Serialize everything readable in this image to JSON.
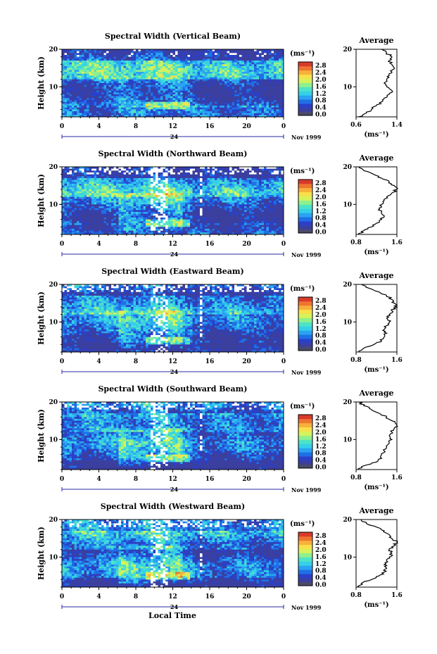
{
  "figure": {
    "xlabel": "Local Time",
    "ylabel": "Height (km)",
    "x_ticks": [
      "0",
      "4",
      "8",
      "12",
      "16",
      "20",
      "0"
    ],
    "y_ticks": [
      "20",
      "10"
    ],
    "date_day": "24",
    "date_label": "Nov 1999",
    "colorbar_unit": "(ms⁻¹)",
    "colorbar_ticks": [
      "2.8",
      "2.4",
      "2.0",
      "1.6",
      "1.2",
      "0.8",
      "0.4",
      "0.0"
    ],
    "profile_title": "Average",
    "profile_xlabel": "(ms⁻¹)"
  },
  "colors": {
    "colormap": [
      "#3b3f9e",
      "#2a40c8",
      "#1f6fe6",
      "#2aa3f2",
      "#35d0e8",
      "#4fe3c5",
      "#8ff08c",
      "#d6f25b",
      "#f7e04a",
      "#f7b03b",
      "#ef7430",
      "#d93a2b"
    ],
    "colorbar_bottom": "#4a4a6a"
  },
  "chart_data": [
    {
      "type": "heatmap",
      "title": "Spectral Width (Vertical Beam)",
      "x_range_hours": [
        0,
        24
      ],
      "y_range_km": [
        2,
        20
      ],
      "color_range": [
        0.0,
        3.0
      ],
      "profile": {
        "title": "Average",
        "x_ticks": [
          "0.6",
          "1.4"
        ],
        "xlim": [
          0.6,
          1.4
        ],
        "height_km": [
          2,
          3,
          4,
          5,
          6,
          7,
          8,
          9,
          10,
          11,
          12,
          13,
          14,
          15,
          16,
          17,
          18,
          19,
          20
        ],
        "value": [
          0.65,
          0.8,
          0.9,
          1.0,
          1.1,
          1.15,
          1.25,
          1.3,
          1.2,
          1.15,
          1.2,
          1.25,
          1.3,
          1.35,
          1.3,
          1.25,
          1.3,
          1.2,
          1.1
        ]
      }
    },
    {
      "type": "heatmap",
      "title": "Spectral Width (Northward Beam)",
      "x_range_hours": [
        0,
        24
      ],
      "y_range_km": [
        2,
        20
      ],
      "color_range": [
        0.0,
        3.0
      ],
      "profile": {
        "title": "Average",
        "x_ticks": [
          "0.8",
          "1.6"
        ],
        "xlim": [
          0.8,
          1.6
        ],
        "height_km": [
          2,
          3,
          4,
          5,
          6,
          7,
          8,
          9,
          10,
          11,
          12,
          13,
          14,
          15,
          16,
          17,
          18,
          19,
          20
        ],
        "value": [
          0.85,
          0.95,
          1.1,
          1.2,
          1.3,
          1.35,
          1.3,
          1.25,
          1.3,
          1.35,
          1.4,
          1.5,
          1.6,
          1.55,
          1.45,
          1.3,
          1.15,
          0.95,
          0.85
        ]
      }
    },
    {
      "type": "heatmap",
      "title": "Spectral Width (Eastward Beam)",
      "x_range_hours": [
        0,
        24
      ],
      "y_range_km": [
        2,
        20
      ],
      "color_range": [
        0.0,
        3.0
      ],
      "profile": {
        "title": "Average",
        "x_ticks": [
          "0.8",
          "1.6"
        ],
        "xlim": [
          0.8,
          1.6
        ],
        "height_km": [
          2,
          3,
          4,
          5,
          6,
          7,
          8,
          9,
          10,
          11,
          12,
          13,
          14,
          15,
          16,
          17,
          18,
          19,
          20
        ],
        "value": [
          0.85,
          0.95,
          1.15,
          1.3,
          1.35,
          1.4,
          1.35,
          1.4,
          1.45,
          1.4,
          1.45,
          1.5,
          1.6,
          1.55,
          1.5,
          1.4,
          1.25,
          1.05,
          0.9
        ]
      }
    },
    {
      "type": "heatmap",
      "title": "Spectral Width (Southward Beam)",
      "x_range_hours": [
        0,
        24
      ],
      "y_range_km": [
        2,
        20
      ],
      "color_range": [
        0.0,
        3.0
      ],
      "profile": {
        "title": "Average",
        "x_ticks": [
          "0.8",
          "1.6"
        ],
        "xlim": [
          0.8,
          1.6
        ],
        "height_km": [
          2,
          3,
          4,
          5,
          6,
          7,
          8,
          9,
          10,
          11,
          12,
          13,
          14,
          15,
          16,
          17,
          18,
          19,
          20
        ],
        "value": [
          0.85,
          0.95,
          1.2,
          1.3,
          1.3,
          1.35,
          1.4,
          1.45,
          1.5,
          1.45,
          1.5,
          1.55,
          1.6,
          1.5,
          1.4,
          1.25,
          1.1,
          0.95,
          0.85
        ]
      }
    },
    {
      "type": "heatmap",
      "title": "Spectral Width (Westward Beam)",
      "x_range_hours": [
        0,
        24
      ],
      "y_range_km": [
        2,
        20
      ],
      "color_range": [
        0.0,
        3.0
      ],
      "profile": {
        "title": "Average",
        "x_ticks": [
          "0.8",
          "1.6"
        ],
        "xlim": [
          0.8,
          1.6
        ],
        "height_km": [
          2,
          3,
          4,
          5,
          6,
          7,
          8,
          9,
          10,
          11,
          12,
          13,
          14,
          15,
          16,
          17,
          18,
          19,
          20
        ],
        "value": [
          0.85,
          0.9,
          1.1,
          1.25,
          1.35,
          1.4,
          1.35,
          1.4,
          1.45,
          1.5,
          1.45,
          1.55,
          1.6,
          1.5,
          1.45,
          1.35,
          1.2,
          1.0,
          0.9
        ]
      }
    }
  ]
}
